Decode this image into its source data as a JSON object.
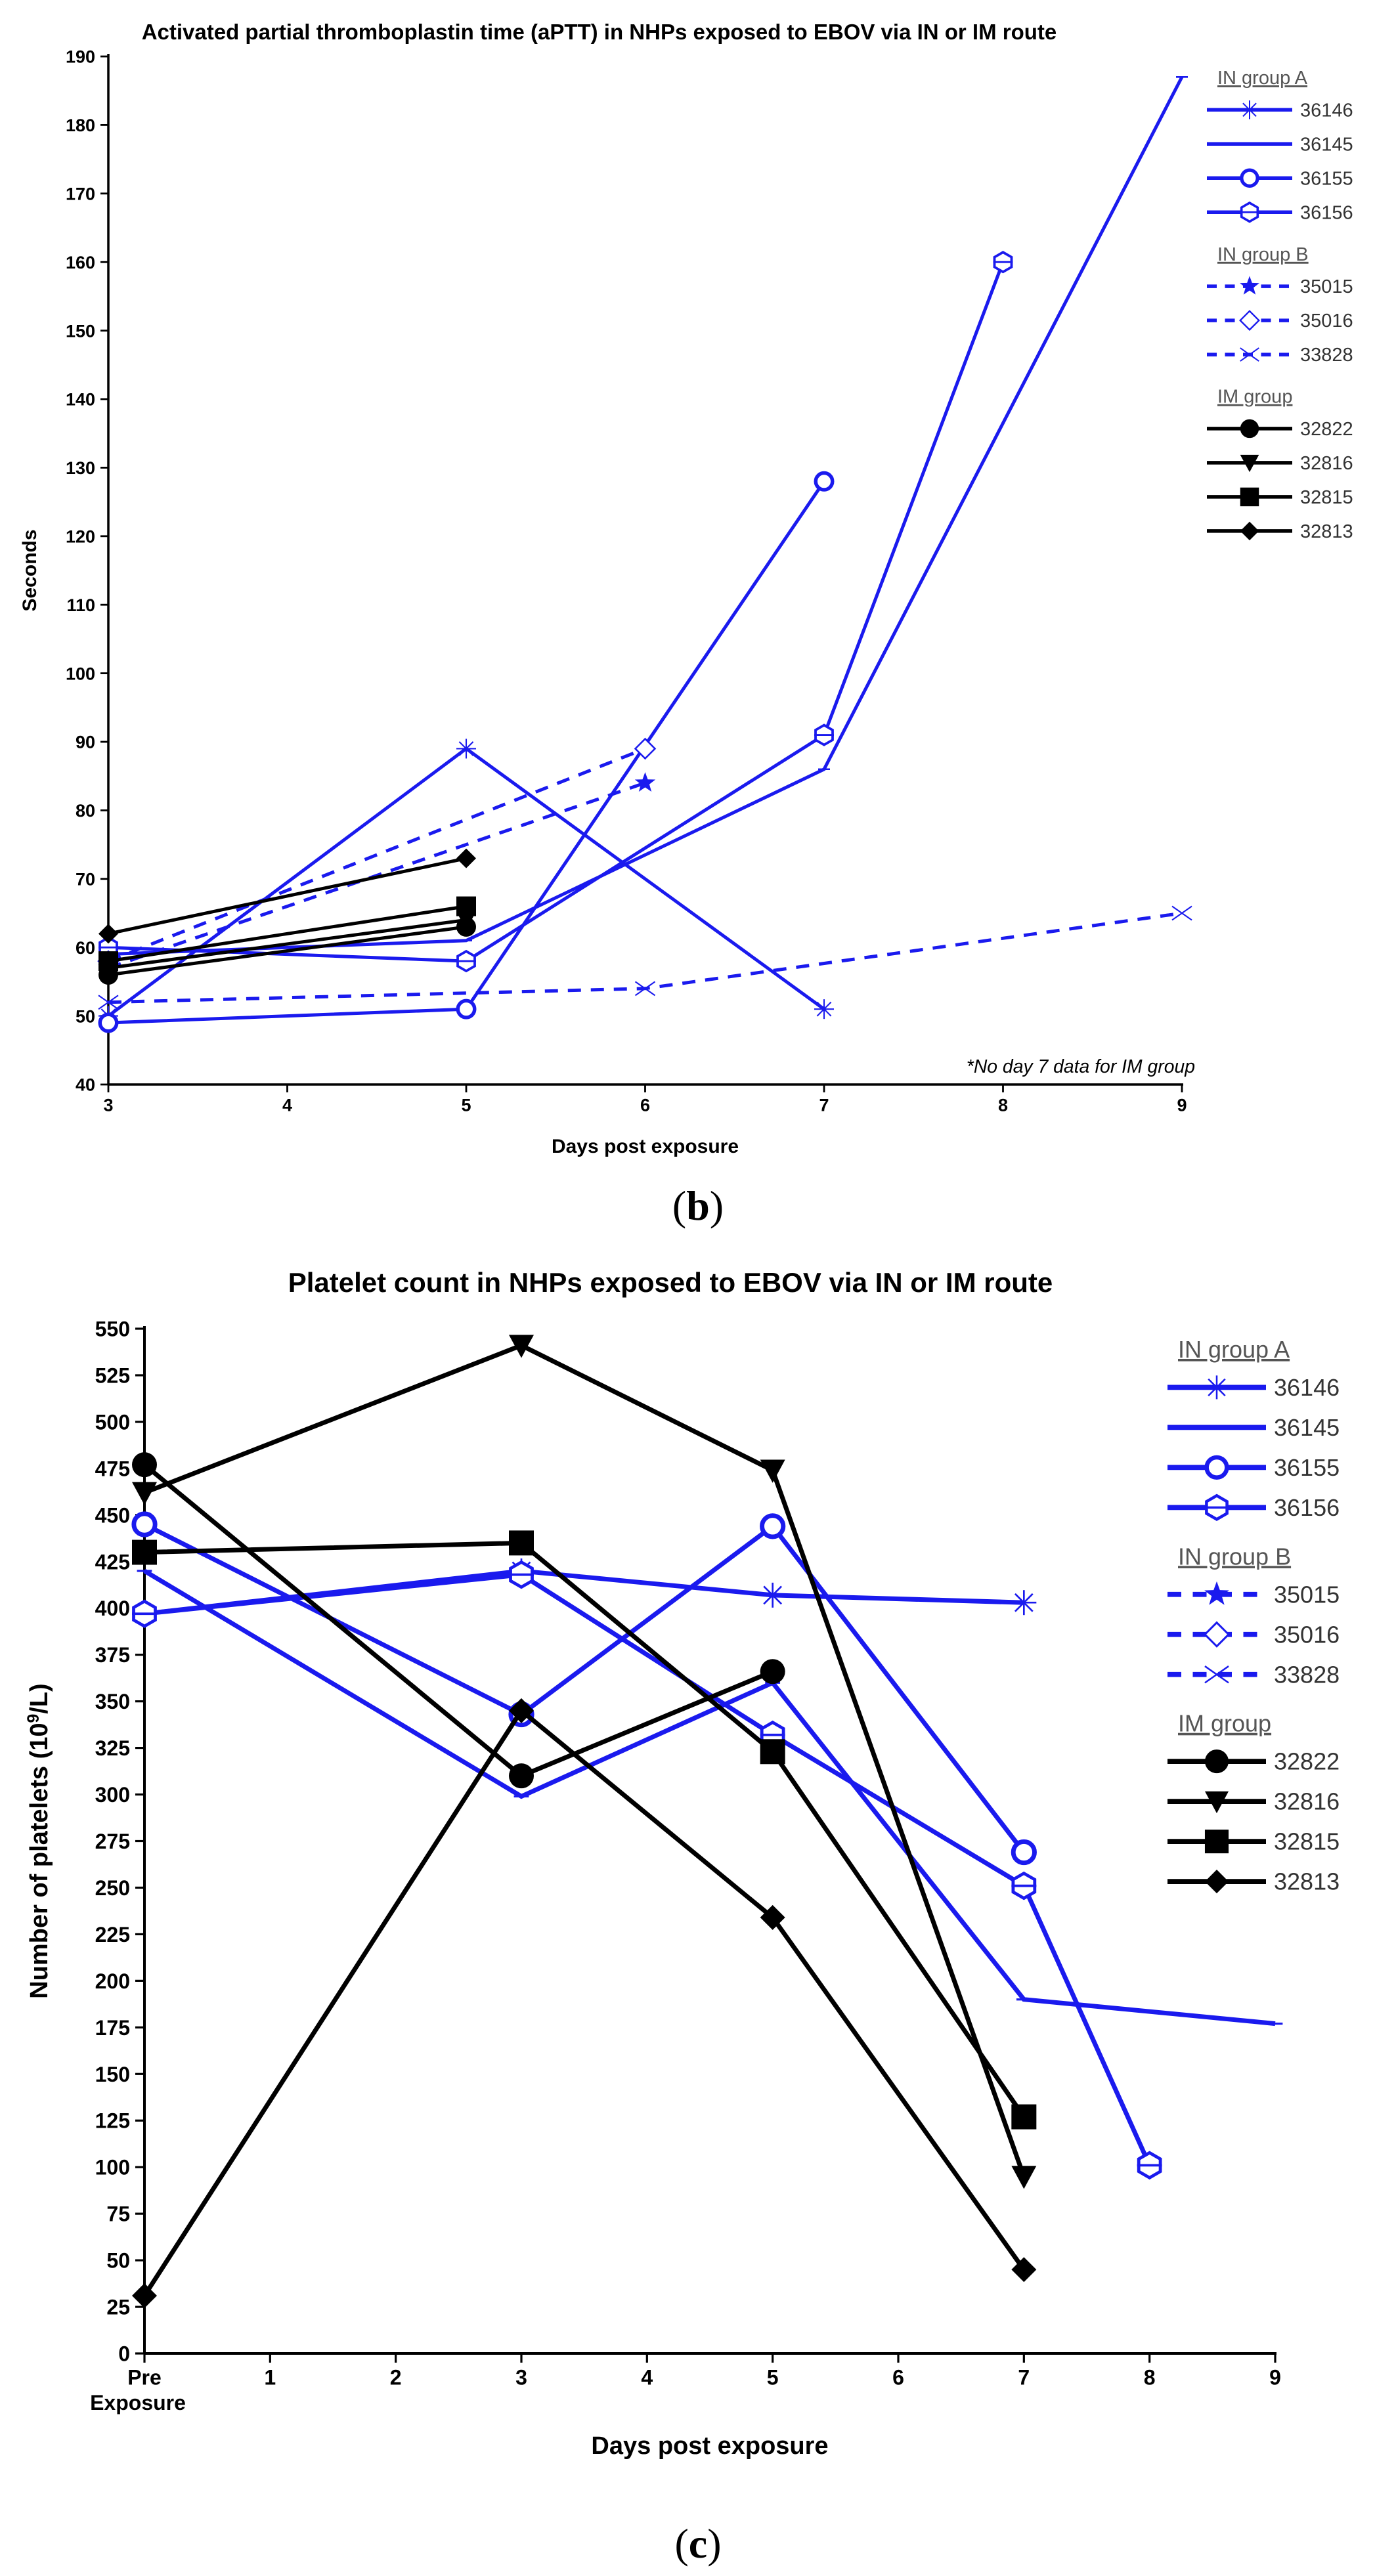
{
  "colors": {
    "blue": "#1a1aee",
    "black": "#000000"
  },
  "chart_data": [
    {
      "id": "aptt",
      "type": "line",
      "panel_label": "b",
      "title": "Activated partial thromboplastin time (aPTT) in NHPs exposed to EBOV via IN or IM route",
      "xlabel": "Days post exposure",
      "ylabel": "Seconds",
      "xlim": [
        3,
        9
      ],
      "ylim": [
        40,
        190
      ],
      "x_ticks": [
        3,
        4,
        5,
        6,
        7,
        8,
        9
      ],
      "x_tick_labels": [
        "3",
        "4",
        "5",
        "6",
        "7",
        "8",
        "9"
      ],
      "y_ticks": [
        40,
        50,
        60,
        70,
        80,
        90,
        100,
        110,
        120,
        130,
        140,
        150,
        160,
        170,
        180,
        190
      ],
      "annotation": "*No day 7 data for IM group",
      "legend_groups": [
        {
          "title": "IN group  A",
          "series": [
            "36146",
            "36145",
            "36155",
            "36156"
          ]
        },
        {
          "title": "IN group  B",
          "series": [
            "35015",
            "35016",
            "33828"
          ]
        },
        {
          "title": "IM group",
          "series": [
            "32822",
            "32816",
            "32815",
            "32813"
          ]
        }
      ],
      "series": [
        {
          "name": "36146",
          "color": "blue",
          "dash": false,
          "marker": "asterisk",
          "x": [
            3,
            5,
            7
          ],
          "y": [
            50,
            89,
            51
          ]
        },
        {
          "name": "36145",
          "color": "blue",
          "dash": false,
          "marker": "hline",
          "x": [
            3,
            5,
            7,
            9
          ],
          "y": [
            59,
            61,
            86,
            187
          ]
        },
        {
          "name": "36155",
          "color": "blue",
          "dash": false,
          "marker": "circle-open",
          "x": [
            3,
            5,
            7
          ],
          "y": [
            49,
            51,
            128
          ]
        },
        {
          "name": "36156",
          "color": "blue",
          "dash": false,
          "marker": "hexagon-open",
          "x": [
            3,
            5,
            7,
            8
          ],
          "y": [
            60,
            58,
            91,
            160
          ]
        },
        {
          "name": "35015",
          "color": "blue",
          "dash": true,
          "marker": "star",
          "x": [
            3,
            6
          ],
          "y": [
            57,
            84
          ]
        },
        {
          "name": "35016",
          "color": "blue",
          "dash": true,
          "marker": "diamond-open",
          "x": [
            3,
            6
          ],
          "y": [
            58,
            89
          ]
        },
        {
          "name": "33828",
          "color": "blue",
          "dash": true,
          "marker": "x",
          "x": [
            3,
            6,
            9
          ],
          "y": [
            52,
            54,
            65
          ]
        },
        {
          "name": "32822",
          "color": "black",
          "dash": false,
          "marker": "circle",
          "x": [
            3,
            5
          ],
          "y": [
            56,
            63
          ]
        },
        {
          "name": "32816",
          "color": "black",
          "dash": false,
          "marker": "triangle-down",
          "x": [
            3,
            5
          ],
          "y": [
            57,
            64
          ]
        },
        {
          "name": "32815",
          "color": "black",
          "dash": false,
          "marker": "square",
          "x": [
            3,
            5
          ],
          "y": [
            58,
            66
          ]
        },
        {
          "name": "32813",
          "color": "black",
          "dash": false,
          "marker": "diamond",
          "x": [
            3,
            5
          ],
          "y": [
            62,
            73
          ]
        }
      ]
    },
    {
      "id": "platelet",
      "type": "line",
      "panel_label": "c",
      "title": "Platelet count in NHPs exposed to EBOV via IN or IM route",
      "xlabel": "Days post exposure",
      "ylabel": "Number of platelets (10",
      "ylabel_sup": "9",
      "ylabel_end": "/L)",
      "xlim": [
        0,
        9
      ],
      "ylim": [
        0,
        550
      ],
      "x_ticks": [
        0,
        1,
        2,
        3,
        4,
        5,
        6,
        7,
        8,
        9
      ],
      "x_tick_labels": [
        "Pre",
        "1",
        "2",
        "3",
        "4",
        "5",
        "6",
        "7",
        "8",
        "9"
      ],
      "x_tick_sub": "Exposure",
      "y_ticks": [
        0,
        25,
        50,
        75,
        100,
        125,
        150,
        175,
        200,
        225,
        250,
        275,
        300,
        325,
        350,
        375,
        400,
        425,
        450,
        475,
        500,
        525,
        550
      ],
      "legend_groups": [
        {
          "title": "IN group  A",
          "series": [
            "36146",
            "36145",
            "36155",
            "36156"
          ]
        },
        {
          "title": "IN group  B",
          "series": [
            "35015",
            "35016",
            "33828"
          ]
        },
        {
          "title": "IM group",
          "series": [
            "32822",
            "32816",
            "32815",
            "32813"
          ]
        }
      ],
      "series": [
        {
          "name": "36146",
          "color": "blue",
          "dash": false,
          "marker": "asterisk",
          "x": [
            0,
            3,
            5,
            7
          ],
          "y": [
            397,
            420,
            407,
            403
          ]
        },
        {
          "name": "36145",
          "color": "blue",
          "dash": false,
          "marker": "hline",
          "x": [
            0,
            3,
            5,
            7,
            9
          ],
          "y": [
            420,
            299,
            360,
            190,
            177
          ]
        },
        {
          "name": "36155",
          "color": "blue",
          "dash": false,
          "marker": "circle-open",
          "x": [
            0,
            3,
            5,
            7
          ],
          "y": [
            445,
            343,
            444,
            269
          ]
        },
        {
          "name": "36156",
          "color": "blue",
          "dash": false,
          "marker": "hexagon-open",
          "x": [
            0,
            3,
            5,
            7,
            8
          ],
          "y": [
            397,
            418,
            332,
            251,
            101
          ]
        },
        {
          "name": "32822",
          "color": "black",
          "dash": false,
          "marker": "circle",
          "x": [
            0,
            3,
            5
          ],
          "y": [
            477,
            310,
            366
          ]
        },
        {
          "name": "32816",
          "color": "black",
          "dash": false,
          "marker": "triangle-down",
          "x": [
            0,
            3,
            5,
            7
          ],
          "y": [
            462,
            541,
            474,
            95
          ]
        },
        {
          "name": "32815",
          "color": "black",
          "dash": false,
          "marker": "square",
          "x": [
            0,
            3,
            5,
            7
          ],
          "y": [
            430,
            435,
            323,
            127
          ]
        },
        {
          "name": "32813",
          "color": "black",
          "dash": false,
          "marker": "diamond",
          "x": [
            0,
            3,
            5,
            7
          ],
          "y": [
            31,
            345,
            234,
            45
          ]
        }
      ]
    }
  ]
}
